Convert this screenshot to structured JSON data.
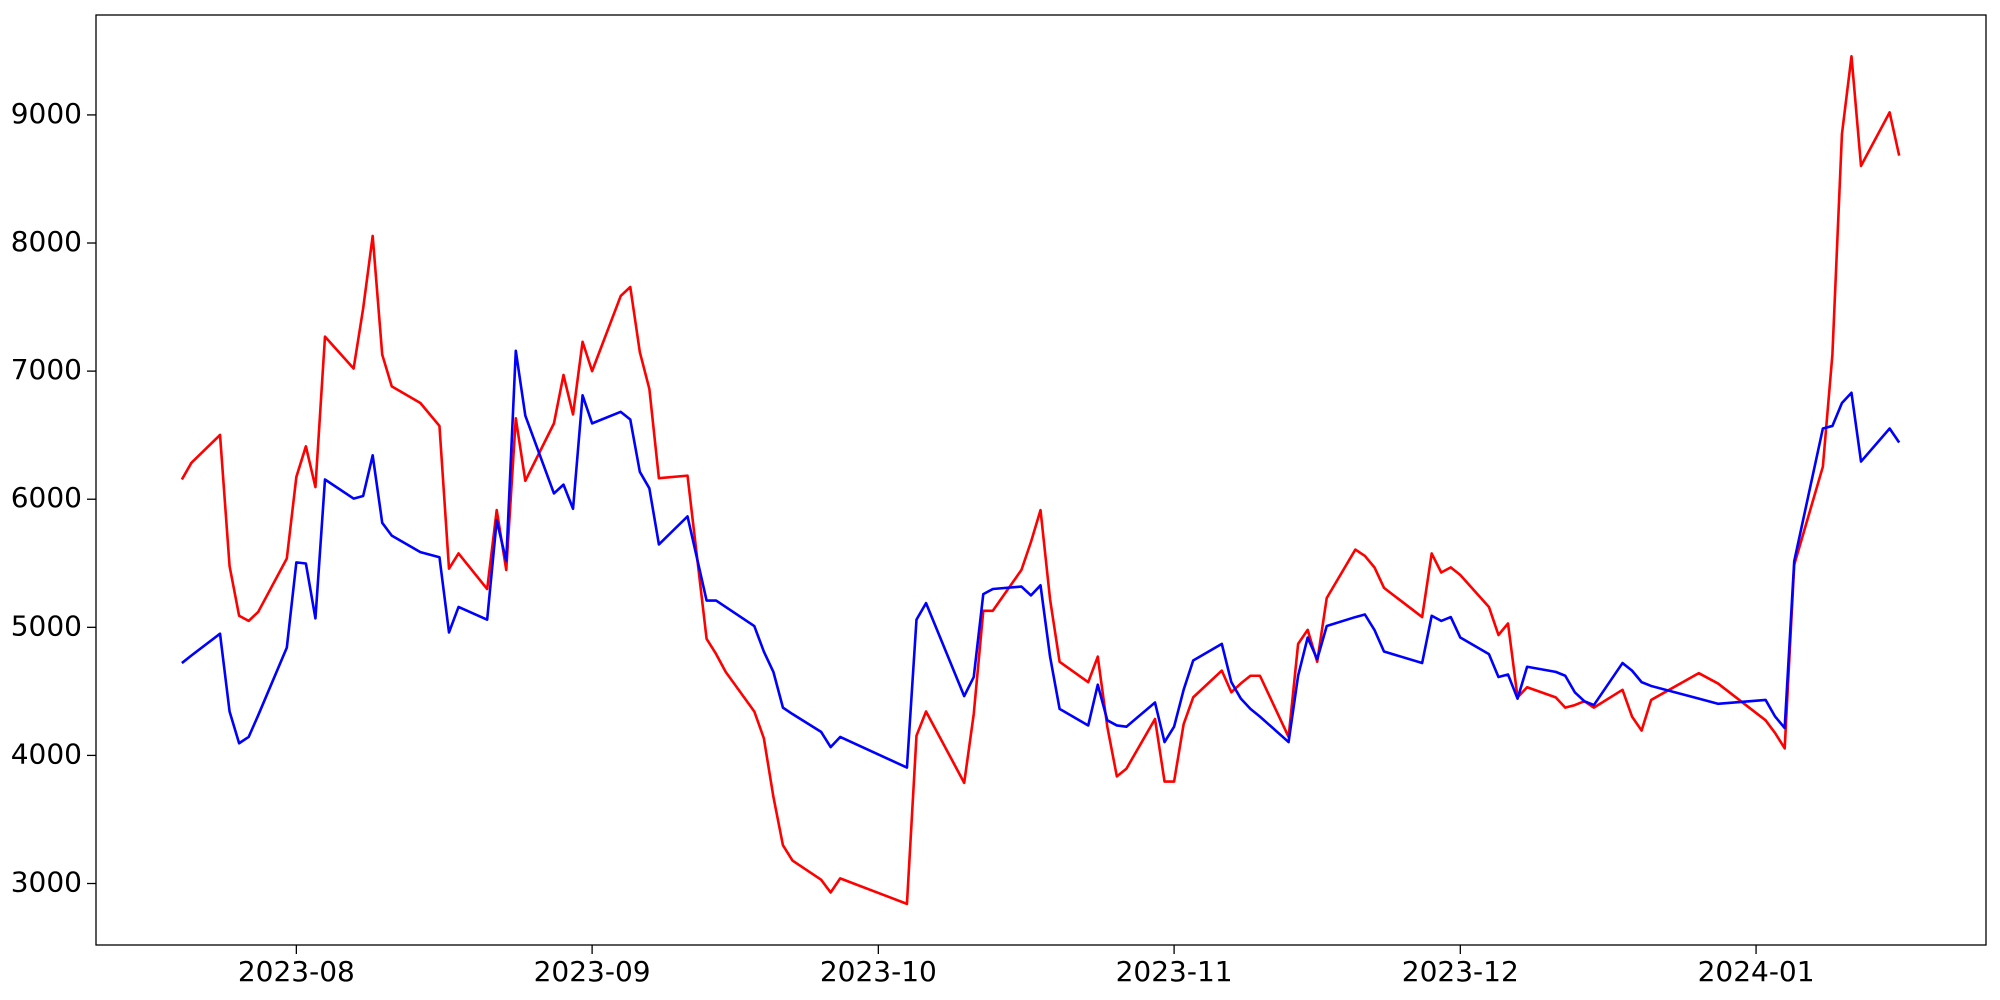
{
  "chart_data": {
    "type": "line",
    "x": [
      -12,
      -11,
      -8,
      -7,
      -6,
      -5,
      -4,
      -1,
      0,
      1,
      2,
      3,
      6,
      7,
      8,
      9,
      10,
      13,
      15,
      16,
      17,
      20,
      21,
      22,
      23,
      24,
      27,
      28,
      29,
      30,
      31,
      34,
      35,
      36,
      37,
      38,
      41,
      43,
      44,
      45,
      48,
      49,
      50,
      51,
      52,
      55,
      56,
      57,
      64,
      65,
      66,
      70,
      71,
      72,
      73,
      76,
      77,
      78,
      79,
      80,
      83,
      84,
      85,
      86,
      87,
      90,
      91,
      92,
      93,
      94,
      97,
      98,
      99,
      100,
      101,
      104,
      105,
      106,
      107,
      108,
      111,
      112,
      113,
      114,
      118,
      119,
      120,
      121,
      122,
      125,
      126,
      127,
      128,
      129,
      132,
      133,
      134,
      135,
      136,
      139,
      140,
      141,
      142,
      147,
      149,
      154,
      155,
      156,
      157,
      160,
      161,
      162,
      163,
      164,
      167,
      168
    ],
    "series": [
      {
        "color": "#ff0000",
        "values": [
          6154,
          6284,
          6502,
          5478,
          5090,
          5050,
          5120,
          5537,
          6174,
          6413,
          6095,
          7269,
          7020,
          7488,
          8055,
          7129,
          6881,
          6751,
          6572,
          5458,
          5577,
          5299,
          5915,
          5448,
          6632,
          6144,
          6592,
          6970,
          6662,
          7229,
          7000,
          7587,
          7657,
          7149,
          6861,
          6164,
          6184,
          4910,
          4791,
          4652,
          4343,
          4134,
          3677,
          3299,
          3179,
          3030,
          2930,
          3040,
          2841,
          4154,
          4343,
          3786,
          4323,
          5129,
          5129,
          5448,
          5667,
          5915,
          5219,
          4731,
          4572,
          4771,
          4224,
          3836,
          3896,
          4284,
          3796,
          3796,
          4244,
          4453,
          4662,
          4493,
          4562,
          4622,
          4622,
          4144,
          4871,
          4980,
          4731,
          5229,
          5607,
          5557,
          5468,
          5308,
          5080,
          5577,
          5428,
          5468,
          5408,
          5159,
          4940,
          5030,
          4453,
          4532,
          4453,
          4373,
          4393,
          4423,
          4373,
          4512,
          4303,
          4194,
          4433,
          4642,
          4562,
          4274,
          4174,
          4055,
          5488,
          6254,
          7129,
          8851,
          9458,
          8602,
          9020,
          8682
        ]
      },
      {
        "color": "#0000ff",
        "values": [
          4721,
          4780,
          4950,
          4343,
          4095,
          4144,
          4313,
          4841,
          5507,
          5498,
          5070,
          6154,
          6005,
          6025,
          6343,
          5816,
          5716,
          5587,
          5547,
          4960,
          5159,
          5060,
          5836,
          5517,
          7159,
          6652,
          6045,
          6114,
          5925,
          6811,
          6592,
          6682,
          6622,
          6214,
          6085,
          5647,
          5866,
          5209,
          5209,
          5159,
          5010,
          4811,
          4652,
          4373,
          4323,
          4184,
          4065,
          4144,
          3905,
          5060,
          5189,
          4463,
          4612,
          5259,
          5299,
          5318,
          5249,
          5328,
          4771,
          4363,
          4234,
          4552,
          4274,
          4234,
          4224,
          4413,
          4104,
          4224,
          4512,
          4741,
          4871,
          4572,
          4443,
          4363,
          4303,
          4104,
          4622,
          4920,
          4751,
          5010,
          5080,
          5100,
          4980,
          4811,
          4721,
          5090,
          5050,
          5080,
          4920,
          4791,
          4612,
          4632,
          4443,
          4692,
          4652,
          4622,
          4493,
          4423,
          4393,
          4721,
          4662,
          4572,
          4542,
          4443,
          4403,
          4433,
          4303,
          4214,
          5517,
          6552,
          6572,
          6751,
          6831,
          6294,
          6552,
          6443
        ]
      }
    ],
    "xlim": [
      -21,
      177.1
    ],
    "xticks": [
      {
        "value": 0,
        "label": "2023-08"
      },
      {
        "value": 31,
        "label": "2023-09"
      },
      {
        "value": 61,
        "label": "2023-10"
      },
      {
        "value": 92,
        "label": "2023-11"
      },
      {
        "value": 122,
        "label": "2023-12"
      },
      {
        "value": 153,
        "label": "2024-01"
      }
    ],
    "ylim": [
      2520,
      9780
    ],
    "yticks": [
      3000,
      4000,
      5000,
      6000,
      7000,
      8000,
      9000
    ]
  }
}
